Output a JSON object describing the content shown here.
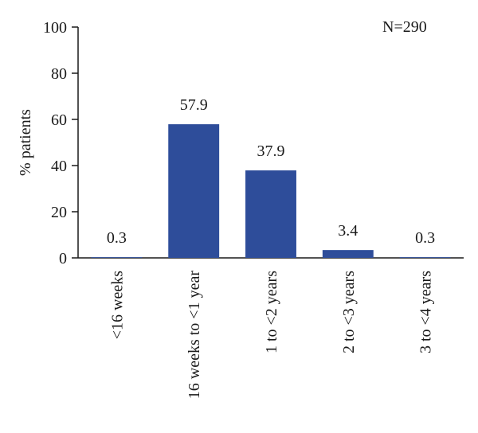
{
  "chart_data": {
    "type": "bar",
    "categories": [
      "<16 weeks",
      "16 weeks to <1 year",
      "1 to <2 years",
      "2 to <3 years",
      "3 to <4 years"
    ],
    "values": [
      0.3,
      57.9,
      37.9,
      3.4,
      0.3
    ],
    "data_labels": [
      "0.3",
      "57.9",
      "37.9",
      "3.4",
      "0.3"
    ],
    "ylabel": "% patients",
    "xlabel": "",
    "title": "",
    "yticks": [
      0,
      20,
      40,
      60,
      80,
      100
    ],
    "ylim": [
      0,
      100
    ],
    "annotation": "N=290",
    "bar_color": "#2e4d9a",
    "grid": false,
    "legend": "none"
  }
}
